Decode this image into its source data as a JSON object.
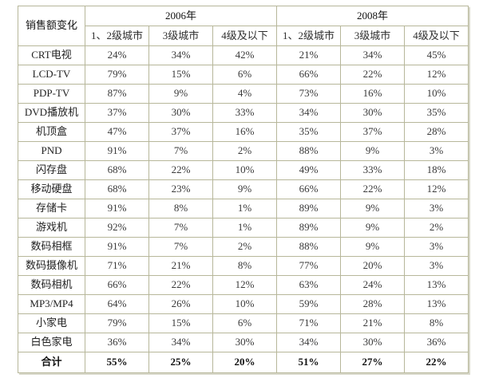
{
  "colors": {
    "background": "#ffffff",
    "border": "#b7b79a",
    "text": "#3a3a3a",
    "header_text": "#111111"
  },
  "chart_data": {
    "type": "table",
    "title": "销售额变化",
    "corner_label": "销售额变化",
    "year_groups": [
      {
        "label": "2006年",
        "columns": [
          "1、2级城市",
          "3级城市",
          "4级及以下"
        ]
      },
      {
        "label": "2008年",
        "columns": [
          "1、2级城市",
          "3级城市",
          "4级及以下"
        ]
      }
    ],
    "rows": [
      {
        "label": "CRT电视",
        "values": [
          "24%",
          "34%",
          "42%",
          "21%",
          "34%",
          "45%"
        ]
      },
      {
        "label": "LCD-TV",
        "values": [
          "79%",
          "15%",
          "6%",
          "66%",
          "22%",
          "12%"
        ]
      },
      {
        "label": "PDP-TV",
        "values": [
          "87%",
          "9%",
          "4%",
          "73%",
          "16%",
          "10%"
        ]
      },
      {
        "label": "DVD播放机",
        "values": [
          "37%",
          "30%",
          "33%",
          "34%",
          "30%",
          "35%"
        ]
      },
      {
        "label": "机顶盒",
        "values": [
          "47%",
          "37%",
          "16%",
          "35%",
          "37%",
          "28%"
        ]
      },
      {
        "label": "PND",
        "values": [
          "91%",
          "7%",
          "2%",
          "88%",
          "9%",
          "3%"
        ]
      },
      {
        "label": "闪存盘",
        "values": [
          "68%",
          "22%",
          "10%",
          "49%",
          "33%",
          "18%"
        ]
      },
      {
        "label": "移动硬盘",
        "values": [
          "68%",
          "23%",
          "9%",
          "66%",
          "22%",
          "12%"
        ]
      },
      {
        "label": "存储卡",
        "values": [
          "91%",
          "8%",
          "1%",
          "89%",
          "9%",
          "3%"
        ]
      },
      {
        "label": "游戏机",
        "values": [
          "92%",
          "7%",
          "1%",
          "89%",
          "9%",
          "2%"
        ]
      },
      {
        "label": "数码相框",
        "values": [
          "91%",
          "7%",
          "2%",
          "88%",
          "9%",
          "3%"
        ]
      },
      {
        "label": "数码摄像机",
        "values": [
          "71%",
          "21%",
          "8%",
          "77%",
          "20%",
          "3%"
        ]
      },
      {
        "label": "数码相机",
        "values": [
          "66%",
          "22%",
          "12%",
          "63%",
          "24%",
          "13%"
        ]
      },
      {
        "label": "MP3/MP4",
        "values": [
          "64%",
          "26%",
          "10%",
          "59%",
          "28%",
          "13%"
        ]
      },
      {
        "label": "小家电",
        "values": [
          "79%",
          "15%",
          "6%",
          "71%",
          "21%",
          "8%"
        ]
      },
      {
        "label": "白色家电",
        "values": [
          "36%",
          "34%",
          "30%",
          "34%",
          "30%",
          "36%"
        ]
      }
    ],
    "total": {
      "label": "合计",
      "values": [
        "55%",
        "25%",
        "20%",
        "51%",
        "27%",
        "22%"
      ]
    }
  }
}
